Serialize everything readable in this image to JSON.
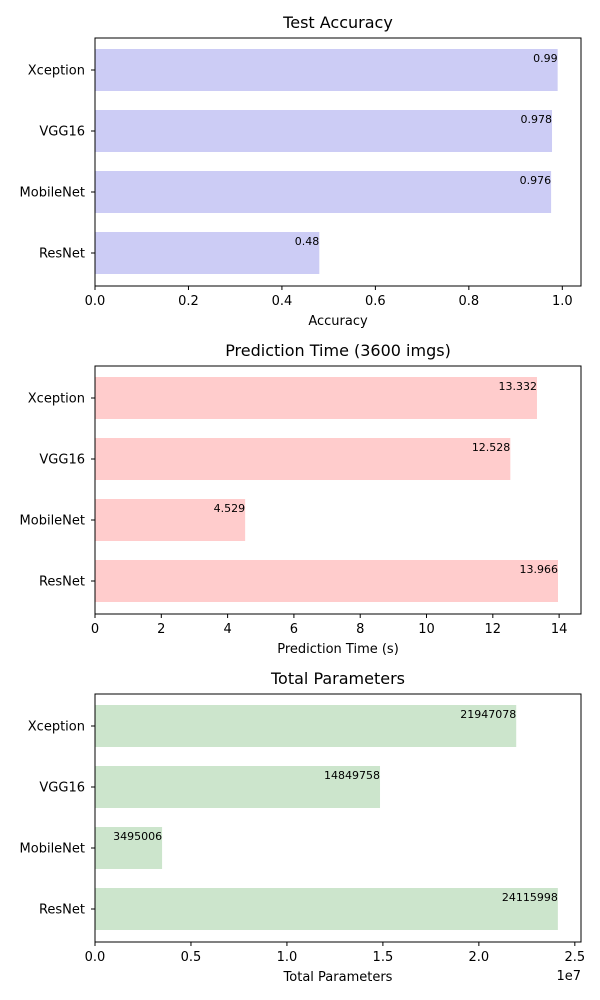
{
  "chart_data": [
    {
      "type": "bar",
      "orientation": "horizontal",
      "title": "Test Accuracy",
      "xlabel": "Accuracy",
      "ylabel": "",
      "categories": [
        "Xception",
        "VGG16",
        "MobileNet",
        "ResNet"
      ],
      "values": [
        0.99,
        0.978,
        0.976,
        0.48
      ],
      "value_labels": [
        "0.99",
        "0.978",
        "0.976",
        "0.48"
      ],
      "xlim": [
        0,
        1.04
      ],
      "xticks": [
        0,
        0.2,
        0.4,
        0.6,
        0.8,
        1.0
      ],
      "xtick_labels": [
        "0.0",
        "0.2",
        "0.4",
        "0.6",
        "0.8",
        "1.0"
      ],
      "offset_text": "",
      "color": "#ccccf5",
      "grid": false
    },
    {
      "type": "bar",
      "orientation": "horizontal",
      "title": "Prediction Time (3600 imgs)",
      "xlabel": "Prediction Time (s)",
      "ylabel": "",
      "categories": [
        "Xception",
        "VGG16",
        "MobileNet",
        "ResNet"
      ],
      "values": [
        13.332,
        12.528,
        4.529,
        13.966
      ],
      "value_labels": [
        "13.332",
        "12.528",
        "4.529",
        "13.966"
      ],
      "xlim": [
        0,
        14.66
      ],
      "xticks": [
        0,
        2,
        4,
        6,
        8,
        10,
        12,
        14
      ],
      "xtick_labels": [
        "0",
        "2",
        "4",
        "6",
        "8",
        "10",
        "12",
        "14"
      ],
      "offset_text": "",
      "color": "#ffcccc",
      "grid": false
    },
    {
      "type": "bar",
      "orientation": "horizontal",
      "title": "Total Parameters",
      "xlabel": "Total Parameters",
      "ylabel": "",
      "categories": [
        "Xception",
        "VGG16",
        "MobileNet",
        "ResNet"
      ],
      "values": [
        21947078,
        14849758,
        3495006,
        24115998
      ],
      "value_labels": [
        "21947078",
        "14849758",
        "3495006",
        "24115998"
      ],
      "xlim": [
        0,
        25321798
      ],
      "xticks": [
        0,
        5000000,
        10000000,
        15000000,
        20000000,
        25000000
      ],
      "xtick_labels": [
        "0.0",
        "0.5",
        "1.0",
        "1.5",
        "2.0",
        "2.5"
      ],
      "offset_text": "1e7",
      "color": "#cce5cc",
      "grid": false
    }
  ]
}
